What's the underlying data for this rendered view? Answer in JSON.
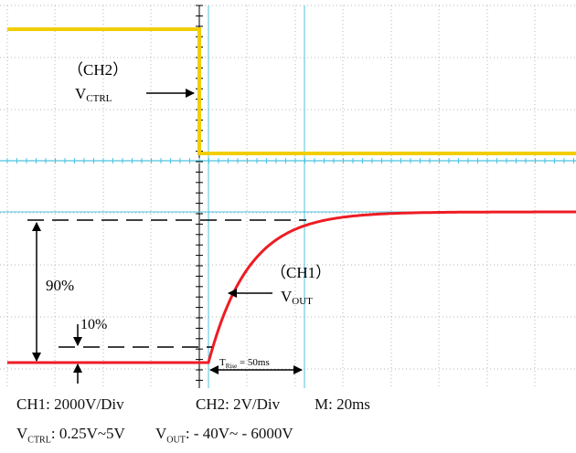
{
  "chart_data": {
    "type": "line",
    "x_unit": "ms",
    "x": [
      0,
      5,
      10,
      15,
      20,
      25,
      30,
      35,
      40,
      45,
      50,
      55,
      60,
      70,
      80,
      90,
      100,
      110,
      120,
      140,
      160,
      180,
      200,
      220,
      240
    ],
    "series": [
      {
        "name": "CH2",
        "label": "V",
        "label_sub": "CTRL",
        "color": "#f2cd00",
        "unit": "V",
        "values": [
          5,
          5,
          5,
          5,
          5,
          5,
          5,
          5,
          5,
          5,
          5,
          5,
          5,
          5,
          5,
          5,
          5,
          0.25,
          0.25,
          0.25,
          0.25,
          0.25,
          0.25,
          0.25,
          0.25
        ]
      },
      {
        "name": "CH1",
        "label": "V",
        "label_sub": "OUT",
        "color": "#ee1c24",
        "unit": "V",
        "values": [
          -40,
          -40,
          -40,
          -40,
          -40,
          -40,
          -40,
          -40,
          -40,
          -40,
          -40,
          -40,
          -40,
          -40,
          -40,
          -40,
          -40,
          -40,
          1300,
          3950,
          5250,
          5850,
          5970,
          6000,
          6000
        ]
      }
    ],
    "annotations": {
      "ch2_label": "（CH2）",
      "ch1_label": "（CH1）",
      "p90": "90%",
      "p10": "10%",
      "trise_prefix": "T",
      "trise_sub": "Rise",
      "trise_value": " = 50ms"
    },
    "grid": true
  },
  "settings": {
    "ch1": "CH1: 2000V/Div",
    "ch2": "CH2: 2V/Div",
    "m": "M: 20ms",
    "vctrl_label": "V",
    "vctrl_sub": "CTRL",
    "vctrl_range": ": 0.25V~5V",
    "vout_label": "V",
    "vout_sub": "OUT",
    "vout_range": ": - 40V~ - 6000V"
  }
}
